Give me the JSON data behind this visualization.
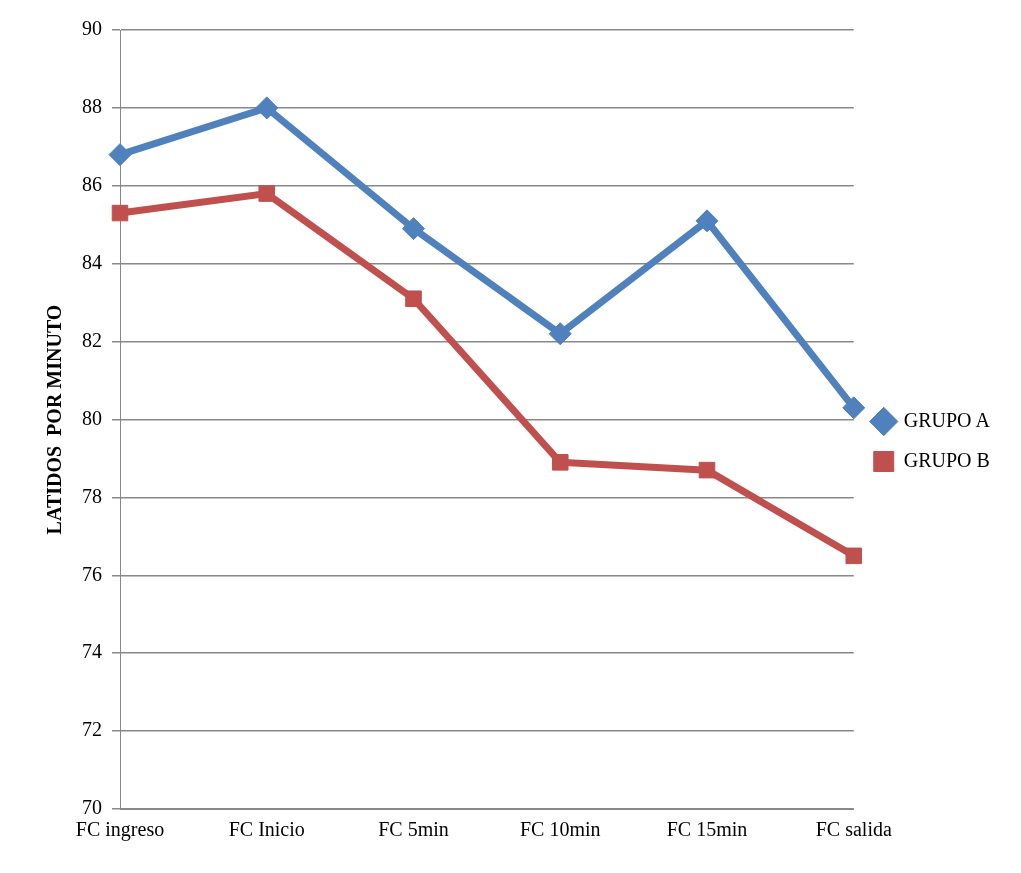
{
  "chart_data": {
    "type": "line",
    "ylabel": "LATIDOS  POR MINUTO",
    "categories": [
      "FC ingreso",
      "FC Inicio",
      "FC 5min",
      "FC 10min",
      "FC 15min",
      "FC salida"
    ],
    "series": [
      {
        "name": "GRUPO A",
        "color": "#4f81bd",
        "values": [
          86.8,
          88.0,
          84.9,
          82.2,
          85.1,
          80.3
        ],
        "marker": "diamond"
      },
      {
        "name": "GRUPO B",
        "color": "#c0504d",
        "values": [
          85.3,
          85.8,
          83.1,
          78.9,
          78.7,
          76.5
        ],
        "marker": "square"
      }
    ],
    "ylim": [
      70,
      90
    ],
    "yticks": [
      70,
      72,
      74,
      76,
      78,
      80,
      82,
      84,
      86,
      88,
      90
    ],
    "grid": "y",
    "legend": "right",
    "line_style": "solid"
  }
}
